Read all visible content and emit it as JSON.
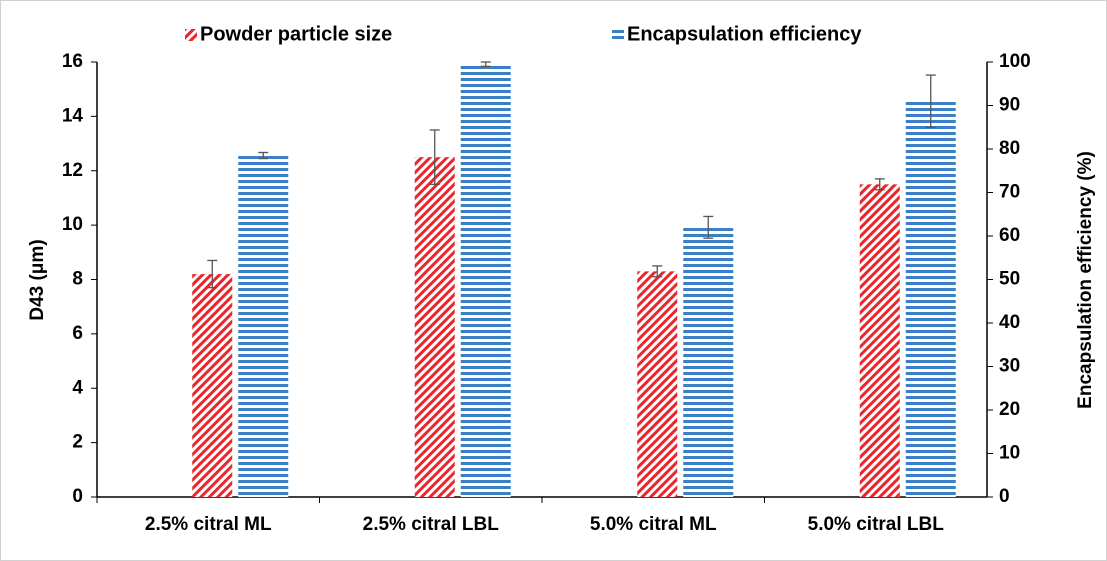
{
  "chart_data": {
    "type": "bar",
    "categories": [
      "2.5% citral ML",
      "2.5% citral LBL",
      "5.0% citral ML",
      "5.0% citral LBL"
    ],
    "series": [
      {
        "name": "Powder particle size",
        "color": "#e8262b",
        "pattern": "diagonal",
        "values": [
          8.2,
          12.5,
          8.3,
          11.5
        ],
        "errors": [
          0.5,
          1.0,
          0.2,
          0.2
        ]
      },
      {
        "name": "Encapsulation efficiency",
        "color": "#3b80c6",
        "pattern": "horizontal",
        "axis": "y2",
        "values": [
          78.5,
          99.5,
          62,
          91
        ],
        "errors": [
          0.7,
          0.5,
          2.5,
          6
        ]
      }
    ],
    "ylabel": "D43 (μm)",
    "y2label": "Encapsulation efficiency (%)",
    "ylim": [
      0,
      16
    ],
    "yticks": [
      0,
      2,
      4,
      6,
      8,
      10,
      12,
      14,
      16
    ],
    "y2lim": [
      0,
      100
    ],
    "y2ticks": [
      0,
      10,
      20,
      30,
      40,
      50,
      60,
      70,
      80,
      90,
      100
    ],
    "legend": "top"
  }
}
